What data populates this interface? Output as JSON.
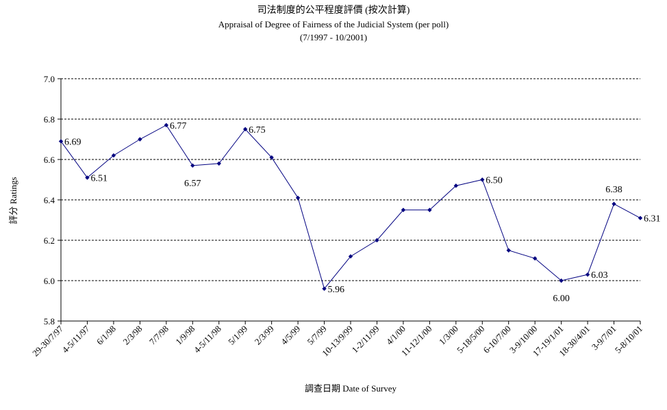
{
  "chart_data": {
    "type": "line",
    "title": "司法制度的公平程度評價 (按次計算)",
    "subtitle": "Appraisal of Degree of Fairness of the Judicial System (per poll)",
    "period": "(7/1997 - 10/2001)",
    "xlabel": "調查日期 Date of Survey",
    "ylabel": "評分 Ratings",
    "ylim": [
      5.8,
      7.0
    ],
    "yticks": [
      "7.0",
      "6.8",
      "6.6",
      "6.4",
      "6.2",
      "6.0",
      "5.8"
    ],
    "grid": true,
    "categories": [
      "29-30/7/97",
      "4-5/11/97",
      "6/1/98",
      "2/3/98",
      "7/7/98",
      "1/9/98",
      "4-5/11/98",
      "5/1/99",
      "2/3/99",
      "4/5/99",
      "5/7/99",
      "10-13/9/99",
      "1-2/11/99",
      "4/1/00",
      "11-12/1/00",
      "1/3/00",
      "5-18/5/00",
      "6-10/7/00",
      "3-9/10/00",
      "17-19/1/01",
      "18-30/4/01",
      "3-9/7/01",
      "5-8/10/01"
    ],
    "values": [
      6.69,
      6.51,
      6.62,
      6.7,
      6.77,
      6.57,
      6.58,
      6.75,
      6.61,
      6.41,
      5.96,
      6.12,
      6.2,
      6.35,
      6.35,
      6.47,
      6.5,
      6.15,
      6.11,
      6.0,
      6.03,
      6.38,
      6.31
    ],
    "data_labels": [
      {
        "index": 0,
        "text": "6.69",
        "pos": "right"
      },
      {
        "index": 1,
        "text": "6.51",
        "pos": "right"
      },
      {
        "index": 4,
        "text": "6.77",
        "pos": "right"
      },
      {
        "index": 5,
        "text": "6.57",
        "pos": "below"
      },
      {
        "index": 7,
        "text": "6.75",
        "pos": "right"
      },
      {
        "index": 10,
        "text": "5.96",
        "pos": "right"
      },
      {
        "index": 16,
        "text": "6.50",
        "pos": "right"
      },
      {
        "index": 19,
        "text": "6.00",
        "pos": "below"
      },
      {
        "index": 20,
        "text": "6.03",
        "pos": "right"
      },
      {
        "index": 21,
        "text": "6.38",
        "pos": "above"
      },
      {
        "index": 22,
        "text": "6.31",
        "pos": "right"
      }
    ],
    "color": "#000080"
  }
}
